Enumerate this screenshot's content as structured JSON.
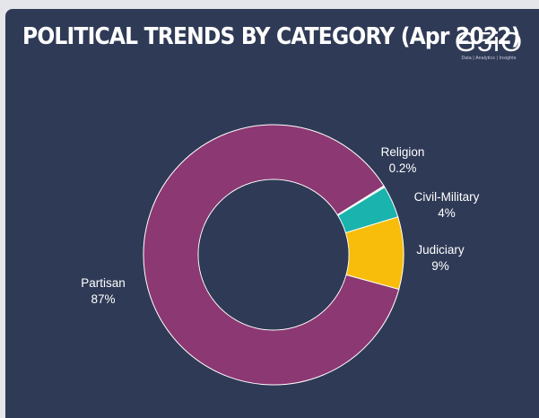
{
  "header": {
    "title": "POLITICAL TRENDS BY CATEGORY (Apr 2022)"
  },
  "logo": {
    "mark": "G5iO",
    "tagline": "Data | Analytics | Insights"
  },
  "colors": {
    "background": "#2f3a56",
    "Partisan": "#8c3872",
    "Religion": "#d9d9d9",
    "Civil-Military": "#1ab3ad",
    "Judiciary": "#f7bd0a"
  },
  "chart_data": {
    "type": "pie",
    "donut": true,
    "title": "POLITICAL TRENDS BY CATEGORY (Apr 2022)",
    "slices": [
      {
        "label": "Religion",
        "value": 0.2,
        "display": "0.2%"
      },
      {
        "label": "Civil-Military",
        "value": 4,
        "display": "4%"
      },
      {
        "label": "Judiciary",
        "value": 9,
        "display": "9%"
      },
      {
        "label": "Partisan",
        "value": 87,
        "display": "87%"
      }
    ]
  }
}
